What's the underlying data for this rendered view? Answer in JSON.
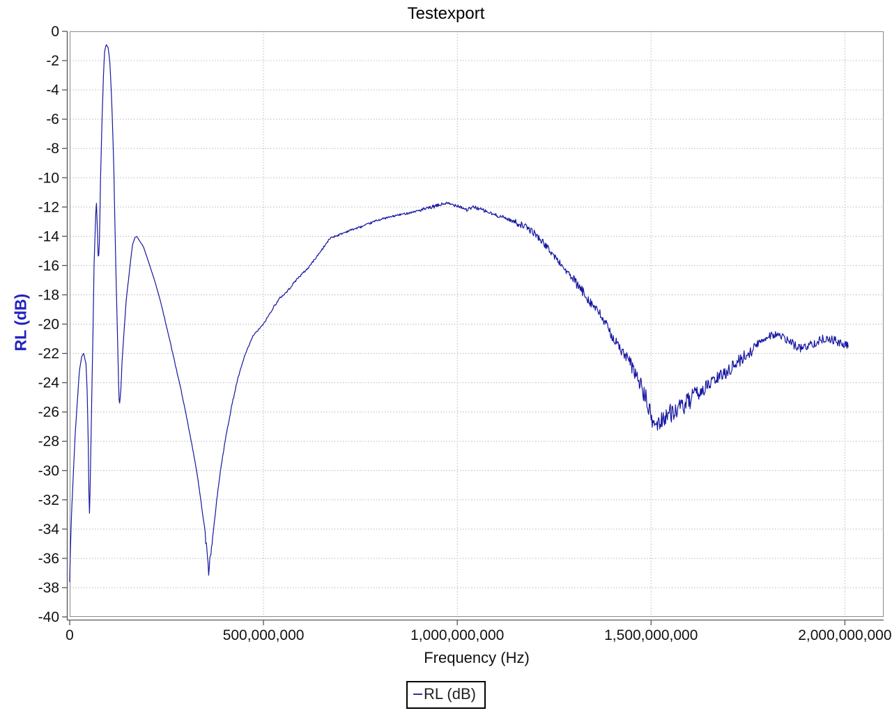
{
  "title": "Testexport",
  "axes": {
    "x": {
      "label": "Frequency (Hz)",
      "min_hz": 0,
      "max_hz": 2100000000,
      "ticks": [
        {
          "hz": 0,
          "label": "0"
        },
        {
          "hz": 500000000,
          "label": "500,000,000"
        },
        {
          "hz": 1000000000,
          "label": "1,000,000,000"
        },
        {
          "hz": 1500000000,
          "label": "1,500,000,000"
        },
        {
          "hz": 2000000000,
          "label": "2,000,000,000"
        }
      ]
    },
    "y": {
      "label": "RL (dB)",
      "min_db": -40,
      "max_db": 0,
      "step_db": 2,
      "tick_labels": [
        "0",
        "-2",
        "-4",
        "-6",
        "-8",
        "-10",
        "-12",
        "-14",
        "-16",
        "-18",
        "-20",
        "-22",
        "-24",
        "-26",
        "-28",
        "-30",
        "-32",
        "-34",
        "-36",
        "-38",
        "-40"
      ]
    }
  },
  "legend": {
    "series_label": "RL (dB)",
    "marker": "line"
  },
  "colors": {
    "series_line": "#1515a0",
    "legend_marker": "#33338f",
    "y_axis_title": "#2222c0",
    "grid": "#b8b8b8",
    "frame": "#8a8a8a",
    "axis_backbone": "#555555",
    "tick_text": "#111111",
    "title_text": "#000000"
  },
  "chart_data": {
    "type": "line",
    "title": "Testexport",
    "xlabel": "Frequency (Hz)",
    "ylabel": "RL (dB)",
    "xlim_hz": [
      0,
      2100000000
    ],
    "ylim_db": [
      -40,
      0
    ],
    "grid": "dotted",
    "legend_position": "below-plot",
    "series": [
      {
        "name": "RL (dB)",
        "color": "#1515a0",
        "points_mhz_db": [
          [
            0,
            -37.6
          ],
          [
            2,
            -35.2
          ],
          [
            5,
            -32.8
          ],
          [
            9,
            -30.5
          ],
          [
            14,
            -27.6
          ],
          [
            20,
            -25.2
          ],
          [
            25,
            -23.2
          ],
          [
            31,
            -22.2
          ],
          [
            36,
            -22.0
          ],
          [
            42,
            -22.7
          ],
          [
            45,
            -24.5
          ],
          [
            48,
            -28.3
          ],
          [
            50.5,
            -33.4
          ],
          [
            53,
            -31.0
          ],
          [
            56,
            -26.4
          ],
          [
            60,
            -20.7
          ],
          [
            63,
            -15.9
          ],
          [
            67,
            -12.6
          ],
          [
            69,
            -11.75
          ],
          [
            71,
            -13.1
          ],
          [
            74,
            -15.8
          ],
          [
            77,
            -14.3
          ],
          [
            79,
            -10.7
          ],
          [
            83,
            -6.4
          ],
          [
            87,
            -3.1
          ],
          [
            90,
            -1.4
          ],
          [
            94,
            -0.9
          ],
          [
            99,
            -1.1
          ],
          [
            103,
            -1.9
          ],
          [
            106,
            -3.3
          ],
          [
            110,
            -5.9
          ],
          [
            114,
            -9.5
          ],
          [
            117,
            -13.6
          ],
          [
            121,
            -18.3
          ],
          [
            125,
            -22.6
          ],
          [
            127,
            -25.1
          ],
          [
            129,
            -25.4
          ],
          [
            132,
            -24.5
          ],
          [
            135,
            -22.6
          ],
          [
            141,
            -20.2
          ],
          [
            146,
            -18.3
          ],
          [
            152,
            -16.9
          ],
          [
            157,
            -15.7
          ],
          [
            162,
            -14.6
          ],
          [
            168,
            -14.1
          ],
          [
            173,
            -14.0
          ],
          [
            180,
            -14.3
          ],
          [
            190,
            -14.7
          ],
          [
            199,
            -15.4
          ],
          [
            209,
            -16.2
          ],
          [
            220,
            -17.1
          ],
          [
            235,
            -18.5
          ],
          [
            253,
            -20.5
          ],
          [
            271,
            -22.6
          ],
          [
            289,
            -24.7
          ],
          [
            307,
            -27.1
          ],
          [
            325,
            -29.6
          ],
          [
            339,
            -32.1
          ],
          [
            348,
            -34.1
          ],
          [
            354,
            -35.4
          ],
          [
            357,
            -36.3
          ],
          [
            359,
            -37.4
          ],
          [
            361,
            -35.9
          ],
          [
            365,
            -35.4
          ],
          [
            370,
            -34.3
          ],
          [
            379,
            -32.1
          ],
          [
            390,
            -29.8
          ],
          [
            403,
            -27.7
          ],
          [
            417,
            -25.7
          ],
          [
            433,
            -23.8
          ],
          [
            451,
            -22.2
          ],
          [
            473,
            -20.8
          ],
          [
            500,
            -20.0
          ],
          [
            527,
            -18.8
          ],
          [
            543,
            -18.2
          ],
          [
            560,
            -17.8
          ],
          [
            587,
            -16.9
          ],
          [
            614,
            -16.2
          ],
          [
            640,
            -15.3
          ],
          [
            673,
            -14.1
          ],
          [
            695,
            -13.9
          ],
          [
            722,
            -13.6
          ],
          [
            758,
            -13.3
          ],
          [
            794,
            -12.9
          ],
          [
            839,
            -12.6
          ],
          [
            884,
            -12.35
          ],
          [
            930,
            -12.05
          ],
          [
            969,
            -11.75
          ],
          [
            1002,
            -11.9
          ],
          [
            1025,
            -12.2
          ],
          [
            1043,
            -12.0
          ],
          [
            1065,
            -12.2
          ],
          [
            1092,
            -12.5
          ],
          [
            1119,
            -12.7
          ],
          [
            1146,
            -13.0
          ],
          [
            1173,
            -13.3
          ],
          [
            1200,
            -13.8
          ],
          [
            1227,
            -14.6
          ],
          [
            1264,
            -15.8
          ],
          [
            1300,
            -17.0
          ],
          [
            1336,
            -18.2
          ],
          [
            1372,
            -19.5
          ],
          [
            1408,
            -21.2
          ],
          [
            1444,
            -22.6
          ],
          [
            1471,
            -24.0
          ],
          [
            1489,
            -25.3
          ],
          [
            1502,
            -26.6
          ],
          [
            1516,
            -26.9
          ],
          [
            1534,
            -26.3
          ],
          [
            1556,
            -26.0
          ],
          [
            1579,
            -25.7
          ],
          [
            1606,
            -25.1
          ],
          [
            1633,
            -24.5
          ],
          [
            1660,
            -23.9
          ],
          [
            1688,
            -23.4
          ],
          [
            1715,
            -22.8
          ],
          [
            1742,
            -22.2
          ],
          [
            1769,
            -21.5
          ],
          [
            1791,
            -21.0
          ],
          [
            1805,
            -20.75
          ],
          [
            1823,
            -20.7
          ],
          [
            1845,
            -21.0
          ],
          [
            1868,
            -21.4
          ],
          [
            1886,
            -21.65
          ],
          [
            1904,
            -21.5
          ],
          [
            1928,
            -21.2
          ],
          [
            1950,
            -20.95
          ],
          [
            1971,
            -21.1
          ],
          [
            1989,
            -21.35
          ],
          [
            2009,
            -21.5
          ]
        ],
        "noise_segments_mhz_amp": [
          [
            0,
            235,
            0
          ],
          [
            235,
            344,
            0.05
          ],
          [
            344,
            368,
            0.4
          ],
          [
            368,
            430,
            0.07
          ],
          [
            430,
            520,
            0.05
          ],
          [
            520,
            900,
            0.07
          ],
          [
            900,
            1150,
            0.12
          ],
          [
            1150,
            1300,
            0.22
          ],
          [
            1300,
            1430,
            0.35
          ],
          [
            1430,
            1480,
            0.5
          ],
          [
            1480,
            1620,
            0.65
          ],
          [
            1620,
            1760,
            0.45
          ],
          [
            1760,
            2010,
            0.3
          ]
        ]
      }
    ]
  }
}
